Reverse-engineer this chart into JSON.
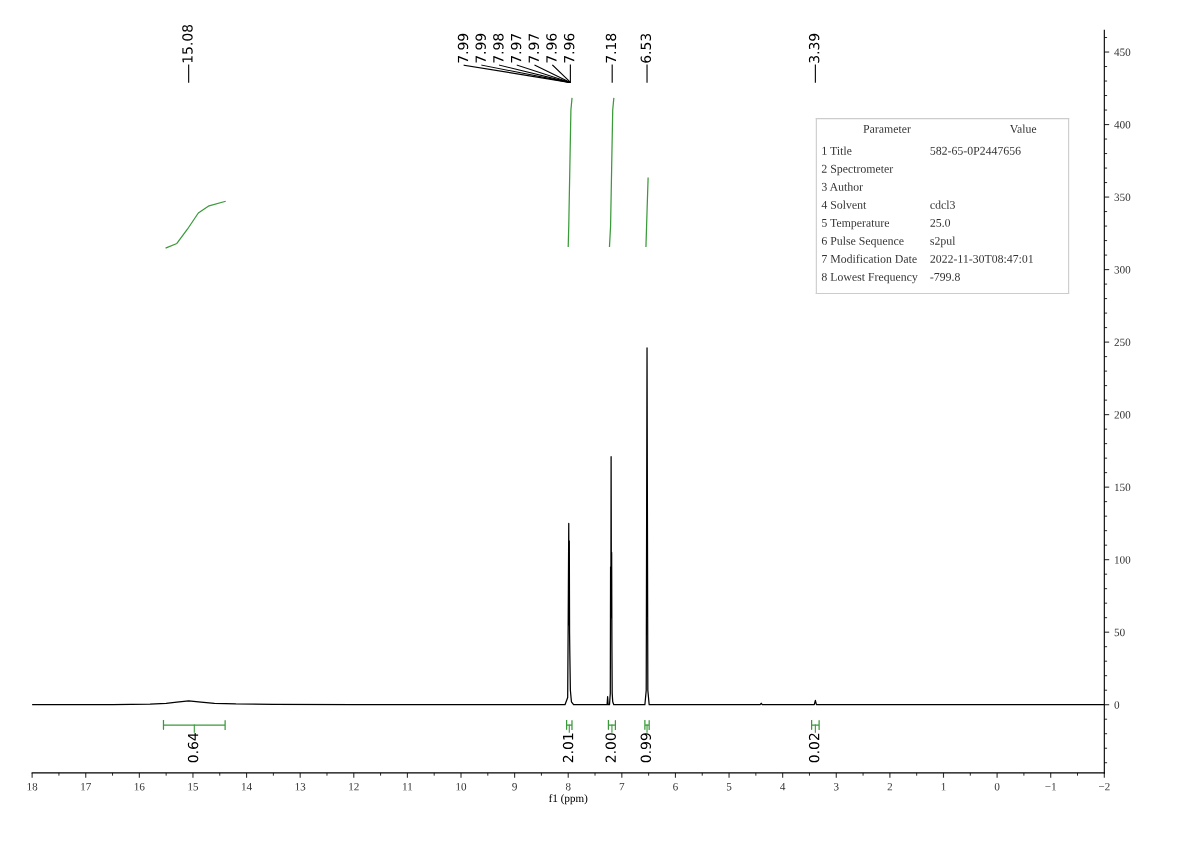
{
  "chart_data": [
    {
      "type": "line",
      "xlabel": "f1 (ppm)",
      "xlim": [
        18,
        -2
      ],
      "xticks": [
        18,
        17,
        16,
        15,
        14,
        13,
        12,
        11,
        10,
        9,
        8,
        7,
        6,
        5,
        4,
        3,
        2,
        1,
        0,
        {
          "value": -1,
          "label": "−1"
        },
        {
          "value": -2,
          "label": "−2"
        }
      ],
      "ylim": [
        -47,
        465
      ],
      "yticks": [
        0,
        50,
        100,
        150,
        200,
        250,
        300,
        350,
        400,
        450
      ],
      "grid": false,
      "legend": false,
      "series": [
        {
          "color": "#000000",
          "x": [
            18,
            16.5,
            15.8,
            15.5,
            15.3,
            15.08,
            14.85,
            14.6,
            14.2,
            13.5,
            12,
            9,
            8.06,
            8.01,
            8.0,
            7.99,
            7.985,
            7.98,
            7.975,
            7.97,
            7.96,
            7.94,
            7.9,
            7.3,
            7.275,
            7.265,
            7.255,
            7.23,
            7.215,
            7.21,
            7.205,
            7.2,
            7.195,
            7.19,
            7.185,
            7.18,
            7.17,
            7.15,
            7.0,
            6.57,
            6.545,
            6.53,
            6.515,
            6.49,
            6.4,
            4.42,
            4.4,
            4.38,
            3.41,
            3.39,
            3.37,
            -2
          ],
          "values": [
            0,
            0,
            0.4,
            1,
            1.8,
            2.6,
            1.8,
            1,
            0.5,
            0.2,
            0,
            0,
            0,
            5,
            60,
            125,
            55,
            113,
            50,
            35,
            10,
            2,
            0,
            0,
            0,
            5.5,
            0,
            0,
            8,
            95,
            60,
            171,
            80,
            105,
            40,
            8,
            2,
            0,
            0,
            0,
            10,
            246,
            10,
            0,
            0,
            0,
            1,
            0,
            0,
            3,
            0,
            0
          ]
        },
        {
          "color": "#3a9a3a",
          "x": [
            15.5,
            15.3,
            15.1,
            14.9,
            14.7,
            14.4
          ],
          "values": [
            315,
            318,
            328,
            339,
            344,
            347
          ]
        },
        {
          "color": "#3a9a3a",
          "x": [
            8.0,
            7.99,
            7.97,
            7.95,
            7.93
          ],
          "values": [
            316,
            330,
            370,
            410,
            418
          ]
        },
        {
          "color": "#3a9a3a",
          "x": [
            7.23,
            7.21,
            7.19,
            7.17,
            7.15
          ],
          "values": [
            316,
            330,
            370,
            410,
            418
          ]
        },
        {
          "color": "#3a9a3a",
          "x": [
            6.55,
            6.53,
            6.51
          ],
          "values": [
            316,
            340,
            363
          ]
        },
        {
          "color": "#3a9a3a",
          "x": [
            15.55,
            15.55,
            15.55,
            14.4,
            14.4,
            14.4,
            null,
            8.03,
            8.03,
            8.03,
            7.93,
            7.93,
            7.93,
            null,
            7.25,
            7.25,
            7.25,
            7.12,
            7.12,
            7.12,
            null,
            6.57,
            6.57,
            6.57,
            6.49,
            6.49,
            6.49,
            null,
            3.46,
            3.46,
            3.46,
            3.32,
            3.32,
            3.32
          ],
          "values": [
            -11,
            -17,
            -14,
            -14,
            -11,
            -17,
            null,
            -11,
            -17,
            -14,
            -14,
            -11,
            -17,
            null,
            -11,
            -17,
            -14,
            -14,
            -11,
            -17,
            null,
            -11,
            -17,
            -14,
            -14,
            -11,
            -17,
            null,
            -11,
            -17,
            -14,
            -14,
            -11,
            -17
          ]
        }
      ],
      "annotations": [
        {
          "text": "15.08",
          "x": 15.08
        },
        {
          "text": "7.99",
          "x": 7.99
        },
        {
          "text": "7.99",
          "x": 7.99
        },
        {
          "text": "7.98",
          "x": 7.98
        },
        {
          "text": "7.97",
          "x": 7.97
        },
        {
          "text": "7.97",
          "x": 7.97
        },
        {
          "text": "7.96",
          "x": 7.96
        },
        {
          "text": "7.96",
          "x": 7.96
        },
        {
          "text": "7.18",
          "x": 7.18
        },
        {
          "text": "6.53",
          "x": 6.53
        },
        {
          "text": "3.39",
          "x": 3.39
        },
        {
          "text": "0.64",
          "x": 14.975,
          "y": -14
        },
        {
          "text": "2.01",
          "x": 7.98,
          "y": -14
        },
        {
          "text": "2.00",
          "x": 7.185,
          "y": -14
        },
        {
          "text": "0.99",
          "x": 6.53,
          "y": -14
        },
        {
          "text": "0.02",
          "x": 3.39,
          "y": -14
        }
      ]
    },
    {
      "type": "other",
      "annotations": [
        "Parameter",
        "Value"
      ],
      "categories": [
        "1 Title",
        "2 Spectrometer",
        "3 Author",
        "4 Solvent",
        "5 Temperature",
        "6 Pulse Sequence",
        "7 Modification Date",
        "8 Lowest Frequency"
      ],
      "value_labels": [
        "582-65-0P2447656",
        null,
        null,
        "cdcl3",
        "25.0",
        "s2pul",
        "2022-11-30T08:47:01",
        "-799.8"
      ]
    }
  ]
}
